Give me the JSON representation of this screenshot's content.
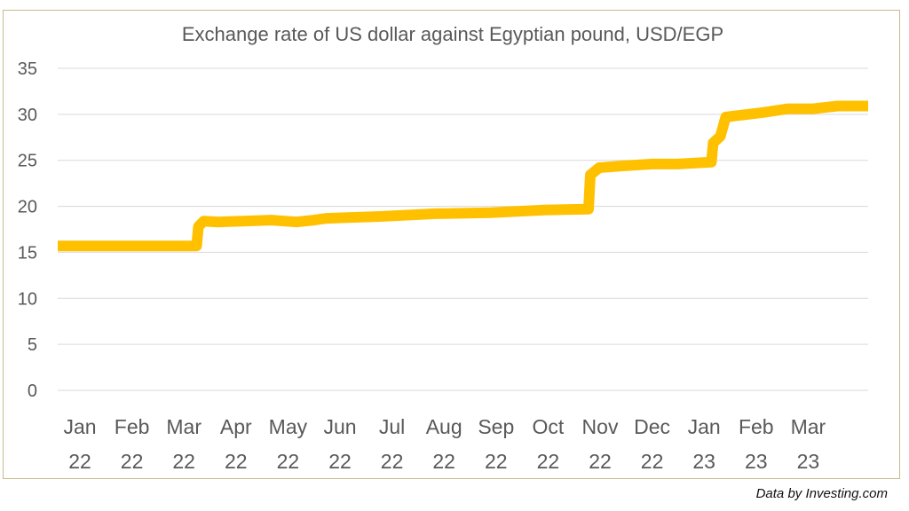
{
  "source_note": "Data by Investing.com",
  "colors": {
    "line": "#FFC000",
    "grid": "#D9D9D9",
    "text": "#595959",
    "frame": "#C9B98A"
  },
  "chart_data": {
    "type": "line",
    "title": "Exchange rate of US dollar against Egyptian pound, USD/EGP",
    "xlabel": "",
    "ylabel": "",
    "ylim": [
      0,
      35
    ],
    "yticks": [
      0,
      5,
      10,
      15,
      20,
      25,
      30,
      35
    ],
    "grid": true,
    "legend": "none",
    "x_tick_labels": [
      [
        "Jan",
        "22"
      ],
      [
        "Feb",
        "22"
      ],
      [
        "Mar",
        "22"
      ],
      [
        "Apr",
        "22"
      ],
      [
        "May",
        "22"
      ],
      [
        "Jun",
        "22"
      ],
      [
        "Jul",
        "22"
      ],
      [
        "Aug",
        "22"
      ],
      [
        "Sep",
        "22"
      ],
      [
        "Oct",
        "22"
      ],
      [
        "Nov",
        "22"
      ],
      [
        "Dec",
        "22"
      ],
      [
        "Jan",
        "23"
      ],
      [
        "Feb",
        "23"
      ],
      [
        "Mar",
        "23"
      ]
    ],
    "x_range": [
      "2022-01-01",
      "2023-04-01"
    ],
    "series": [
      {
        "points": [
          [
            "2022-01-01",
            15.7
          ],
          [
            "2022-02-01",
            15.7
          ],
          [
            "2022-03-01",
            15.7
          ],
          [
            "2022-03-20",
            15.7
          ],
          [
            "2022-03-21",
            17.8
          ],
          [
            "2022-03-24",
            18.4
          ],
          [
            "2022-04-01",
            18.3
          ],
          [
            "2022-04-15",
            18.4
          ],
          [
            "2022-05-01",
            18.5
          ],
          [
            "2022-05-15",
            18.3
          ],
          [
            "2022-05-25",
            18.5
          ],
          [
            "2022-06-01",
            18.7
          ],
          [
            "2022-07-01",
            18.9
          ],
          [
            "2022-08-01",
            19.2
          ],
          [
            "2022-09-01",
            19.3
          ],
          [
            "2022-10-01",
            19.6
          ],
          [
            "2022-10-26",
            19.7
          ],
          [
            "2022-10-27",
            23.4
          ],
          [
            "2022-11-01",
            24.2
          ],
          [
            "2022-11-15",
            24.4
          ],
          [
            "2022-12-01",
            24.6
          ],
          [
            "2022-12-15",
            24.6
          ],
          [
            "2023-01-03",
            24.8
          ],
          [
            "2023-01-04",
            26.9
          ],
          [
            "2023-01-08",
            27.6
          ],
          [
            "2023-01-11",
            29.7
          ],
          [
            "2023-01-15",
            29.8
          ],
          [
            "2023-02-01",
            30.2
          ],
          [
            "2023-02-15",
            30.6
          ],
          [
            "2023-03-01",
            30.6
          ],
          [
            "2023-03-15",
            30.9
          ],
          [
            "2023-04-01",
            30.9
          ]
        ]
      }
    ]
  }
}
